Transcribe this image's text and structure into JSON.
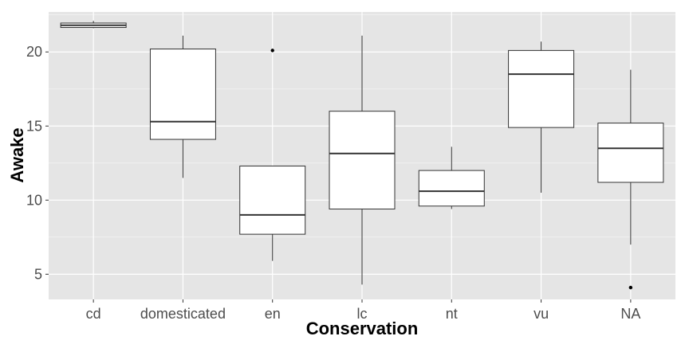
{
  "chart_data": {
    "type": "boxplot",
    "xlabel": "Conservation",
    "ylabel": "Awake",
    "ylim": [
      3.3,
      22.7
    ],
    "yticks": [
      5,
      10,
      15,
      20
    ],
    "grid": true,
    "colors": {
      "panel": "#e5e5e5",
      "grid_major": "#ffffff",
      "box_fill": "#ffffff",
      "box_line": "#333333",
      "tick_text": "#4d4d4d"
    },
    "categories": [
      "cd",
      "domesticated",
      "en",
      "lc",
      "nt",
      "vu",
      "NA"
    ],
    "boxes": [
      {
        "category": "cd",
        "whisker_low": 21.6,
        "q1": 21.65,
        "median": 21.8,
        "q3": 21.95,
        "whisker_high": 22.1,
        "outliers": []
      },
      {
        "category": "domesticated",
        "whisker_low": 11.5,
        "q1": 14.1,
        "median": 15.3,
        "q3": 20.2,
        "whisker_high": 21.1,
        "outliers": []
      },
      {
        "category": "en",
        "whisker_low": 5.9,
        "q1": 7.7,
        "median": 9.0,
        "q3": 12.3,
        "whisker_high": 12.3,
        "outliers": [
          20.1
        ]
      },
      {
        "category": "lc",
        "whisker_low": 4.3,
        "q1": 9.4,
        "median": 13.15,
        "q3": 16.0,
        "whisker_high": 21.1,
        "outliers": []
      },
      {
        "category": "nt",
        "whisker_low": 9.4,
        "q1": 9.6,
        "median": 10.6,
        "q3": 12.0,
        "whisker_high": 13.6,
        "outliers": []
      },
      {
        "category": "vu",
        "whisker_low": 10.5,
        "q1": 14.9,
        "median": 18.5,
        "q3": 20.1,
        "whisker_high": 20.7,
        "outliers": []
      },
      {
        "category": "NA",
        "whisker_low": 7.0,
        "q1": 11.2,
        "median": 13.5,
        "q3": 15.2,
        "whisker_high": 18.8,
        "outliers": [
          4.1
        ]
      }
    ]
  }
}
